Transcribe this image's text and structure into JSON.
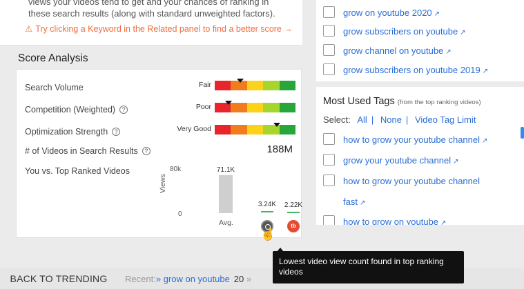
{
  "intro": {
    "text": "views your videos tend to get and your chances of ranking in these search results (along with standard unweighted factors).",
    "warning": "Try clicking a Keyword in the Related panel to find a better score →"
  },
  "score_analysis": {
    "title": "Score Analysis",
    "rows": [
      {
        "label": "Search Volume",
        "rating": "Fair",
        "pointer_fraction": 0.32
      },
      {
        "label": "Competition (Weighted)",
        "rating": "Poor",
        "pointer_fraction": 0.17
      },
      {
        "label": "Optimization Strength",
        "rating": "Very Good",
        "pointer_fraction": 0.77
      }
    ],
    "meter_colors": [
      "#e8242c",
      "#f07c1d",
      "#ffd21a",
      "#a6d62e",
      "#27a63a"
    ],
    "videos_label": "# of Videos in Search Results",
    "videos_count": "188M",
    "compare_label": "You vs. Top Ranked Videos",
    "help_glyph": "?"
  },
  "chart_data": {
    "type": "bar",
    "ylabel": "Views",
    "yticks": [
      "80k",
      "0"
    ],
    "ylim": [
      0,
      80000
    ],
    "categories": [
      "Avg.",
      "target-icon",
      "tubebuddy-icon"
    ],
    "values": [
      71100,
      3240,
      2220
    ],
    "value_labels": [
      "71.1K",
      "3.24K",
      "2.22K"
    ]
  },
  "related_keywords": [
    "grow on youtube 2020",
    "grow subscribers on youtube",
    "grow channel on youtube",
    "grow subscribers on youtube 2019"
  ],
  "most_used_tags": {
    "title": "Most Used Tags",
    "subtitle": "(from the top ranking videos)",
    "select_label": "Select:",
    "select_all": "All",
    "select_none": "None",
    "select_limit": "Video Tag Limit",
    "separator": "|",
    "tags": [
      "how to grow your youtube channel",
      "grow your youtube channel",
      "how to grow your youtube channel",
      "fast",
      "how to grow on youtube"
    ]
  },
  "bottom_bar": {
    "back_label": "BACK TO TRENDING",
    "recent_label": "Recent:",
    "recent_arrow": "»",
    "recent_link": "grow on youtube",
    "recent_count": "20",
    "recent_more": "»"
  },
  "tooltip": {
    "text": "Lowest video view count found in top ranking videos"
  },
  "icons": {
    "external_link": "↗",
    "warning": "⚠",
    "target": "target-icon",
    "tubebuddy": "tb",
    "cursor": "☝"
  },
  "colors": {
    "accent_blue": "#2a6dd6",
    "warning_orange": "#f26b3a",
    "bar_gray": "#cfcfcf",
    "marker_green": "#44b55f"
  }
}
